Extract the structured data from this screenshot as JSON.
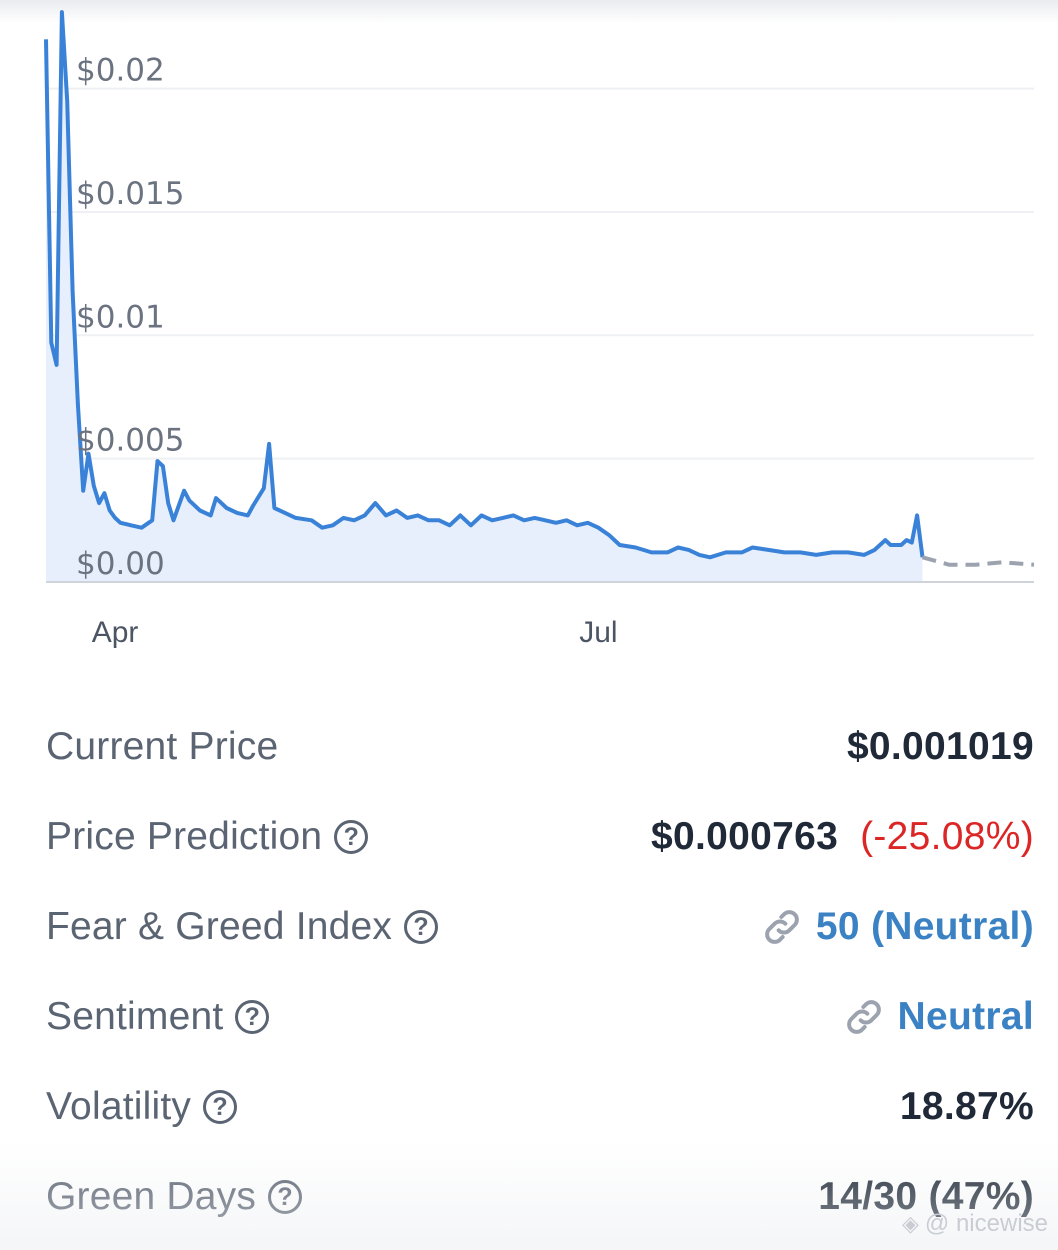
{
  "chart_data": {
    "type": "line",
    "x_range": [
      "2024-03-19",
      "2024-09-21"
    ],
    "ylim": [
      0,
      0.0227
    ],
    "y_ticks": [
      {
        "value": 0,
        "label": "$0.00"
      },
      {
        "value": 0.005,
        "label": "$0.005"
      },
      {
        "value": 0.01,
        "label": "$0.01"
      },
      {
        "value": 0.015,
        "label": "$0.015"
      },
      {
        "value": 0.02,
        "label": "$0.02"
      }
    ],
    "x_ticks": [
      {
        "date": "2024-04-01",
        "label": "Apr"
      },
      {
        "date": "2024-07-01",
        "label": "Jul"
      }
    ],
    "grid": true,
    "colors": {
      "line": "#3a82d8",
      "fill": "#e7effc",
      "prediction": "#9ca3af"
    },
    "series": [
      {
        "style": "solid",
        "points": [
          [
            "2024-03-19",
            0.022
          ],
          [
            "2024-03-20",
            0.0097
          ],
          [
            "2024-03-21",
            0.0088
          ],
          [
            "2024-03-22",
            0.0231
          ],
          [
            "2024-03-23",
            0.0195
          ],
          [
            "2024-03-24",
            0.0118
          ],
          [
            "2024-03-25",
            0.0072
          ],
          [
            "2024-03-26",
            0.0037
          ],
          [
            "2024-03-27",
            0.0052
          ],
          [
            "2024-03-28",
            0.0039
          ],
          [
            "2024-03-29",
            0.0032
          ],
          [
            "2024-03-30",
            0.0036
          ],
          [
            "2024-03-31",
            0.0029
          ],
          [
            "2024-04-01",
            0.0026
          ],
          [
            "2024-04-02",
            0.0024
          ],
          [
            "2024-04-04",
            0.0023
          ],
          [
            "2024-04-06",
            0.0022
          ],
          [
            "2024-04-08",
            0.0025
          ],
          [
            "2024-04-09",
            0.0049
          ],
          [
            "2024-04-10",
            0.0047
          ],
          [
            "2024-04-11",
            0.0032
          ],
          [
            "2024-04-12",
            0.0025
          ],
          [
            "2024-04-14",
            0.0037
          ],
          [
            "2024-04-15",
            0.0033
          ],
          [
            "2024-04-17",
            0.0029
          ],
          [
            "2024-04-19",
            0.0027
          ],
          [
            "2024-04-20",
            0.0034
          ],
          [
            "2024-04-22",
            0.003
          ],
          [
            "2024-04-24",
            0.0028
          ],
          [
            "2024-04-26",
            0.0027
          ],
          [
            "2024-04-27",
            0.0031
          ],
          [
            "2024-04-29",
            0.0038
          ],
          [
            "2024-04-30",
            0.0056
          ],
          [
            "2024-05-01",
            0.003
          ],
          [
            "2024-05-03",
            0.0028
          ],
          [
            "2024-05-05",
            0.0026
          ],
          [
            "2024-05-08",
            0.0025
          ],
          [
            "2024-05-10",
            0.0022
          ],
          [
            "2024-05-12",
            0.0023
          ],
          [
            "2024-05-14",
            0.0026
          ],
          [
            "2024-05-16",
            0.0025
          ],
          [
            "2024-05-18",
            0.0027
          ],
          [
            "2024-05-20",
            0.0032
          ],
          [
            "2024-05-22",
            0.0027
          ],
          [
            "2024-05-24",
            0.0029
          ],
          [
            "2024-05-26",
            0.0026
          ],
          [
            "2024-05-28",
            0.0027
          ],
          [
            "2024-05-30",
            0.0025
          ],
          [
            "2024-06-01",
            0.0025
          ],
          [
            "2024-06-03",
            0.0023
          ],
          [
            "2024-06-05",
            0.0027
          ],
          [
            "2024-06-07",
            0.0023
          ],
          [
            "2024-06-09",
            0.0027
          ],
          [
            "2024-06-11",
            0.0025
          ],
          [
            "2024-06-13",
            0.0026
          ],
          [
            "2024-06-15",
            0.0027
          ],
          [
            "2024-06-17",
            0.0025
          ],
          [
            "2024-06-19",
            0.0026
          ],
          [
            "2024-06-21",
            0.0025
          ],
          [
            "2024-06-23",
            0.0024
          ],
          [
            "2024-06-25",
            0.0025
          ],
          [
            "2024-06-27",
            0.0023
          ],
          [
            "2024-06-29",
            0.0024
          ],
          [
            "2024-07-01",
            0.0022
          ],
          [
            "2024-07-03",
            0.0019
          ],
          [
            "2024-07-05",
            0.0015
          ],
          [
            "2024-07-08",
            0.0014
          ],
          [
            "2024-07-11",
            0.0012
          ],
          [
            "2024-07-14",
            0.0012
          ],
          [
            "2024-07-16",
            0.0014
          ],
          [
            "2024-07-18",
            0.0013
          ],
          [
            "2024-07-20",
            0.0011
          ],
          [
            "2024-07-22",
            0.001
          ],
          [
            "2024-07-25",
            0.0012
          ],
          [
            "2024-07-28",
            0.0012
          ],
          [
            "2024-07-30",
            0.0014
          ],
          [
            "2024-08-02",
            0.0013
          ],
          [
            "2024-08-05",
            0.0012
          ],
          [
            "2024-08-08",
            0.0012
          ],
          [
            "2024-08-11",
            0.0011
          ],
          [
            "2024-08-14",
            0.0012
          ],
          [
            "2024-08-17",
            0.0012
          ],
          [
            "2024-08-20",
            0.0011
          ],
          [
            "2024-08-22",
            0.0013
          ],
          [
            "2024-08-24",
            0.0017
          ],
          [
            "2024-08-25",
            0.0015
          ],
          [
            "2024-08-27",
            0.0015
          ],
          [
            "2024-08-28",
            0.0017
          ],
          [
            "2024-08-29",
            0.0016
          ],
          [
            "2024-08-30",
            0.0027
          ],
          [
            "2024-08-31",
            0.001
          ]
        ]
      },
      {
        "style": "dashed",
        "points": [
          [
            "2024-08-31",
            0.001
          ],
          [
            "2024-09-05",
            0.0007
          ],
          [
            "2024-09-10",
            0.0007
          ],
          [
            "2024-09-15",
            0.0008
          ],
          [
            "2024-09-21",
            0.0007
          ]
        ]
      }
    ]
  },
  "stats": [
    {
      "label": "Current Price",
      "value": "$0.001019",
      "help": false
    },
    {
      "label": "Price Prediction",
      "value": "$0.000763",
      "change": "(-25.08%)",
      "help": true
    },
    {
      "label": "Fear & Greed Index",
      "value": "50 (Neutral)",
      "help": true,
      "link": true
    },
    {
      "label": "Sentiment",
      "value": "Neutral",
      "help": true,
      "link": true
    },
    {
      "label": "Volatility",
      "value": "18.87%",
      "help": true
    },
    {
      "label": "Green Days",
      "value": "14/30 (47%)",
      "help": true
    }
  ],
  "help_glyph": "?",
  "watermark": "@ nicewise",
  "icons": {
    "help": "question-circle-icon",
    "link": "link-icon",
    "watermark": "binance-icon"
  }
}
